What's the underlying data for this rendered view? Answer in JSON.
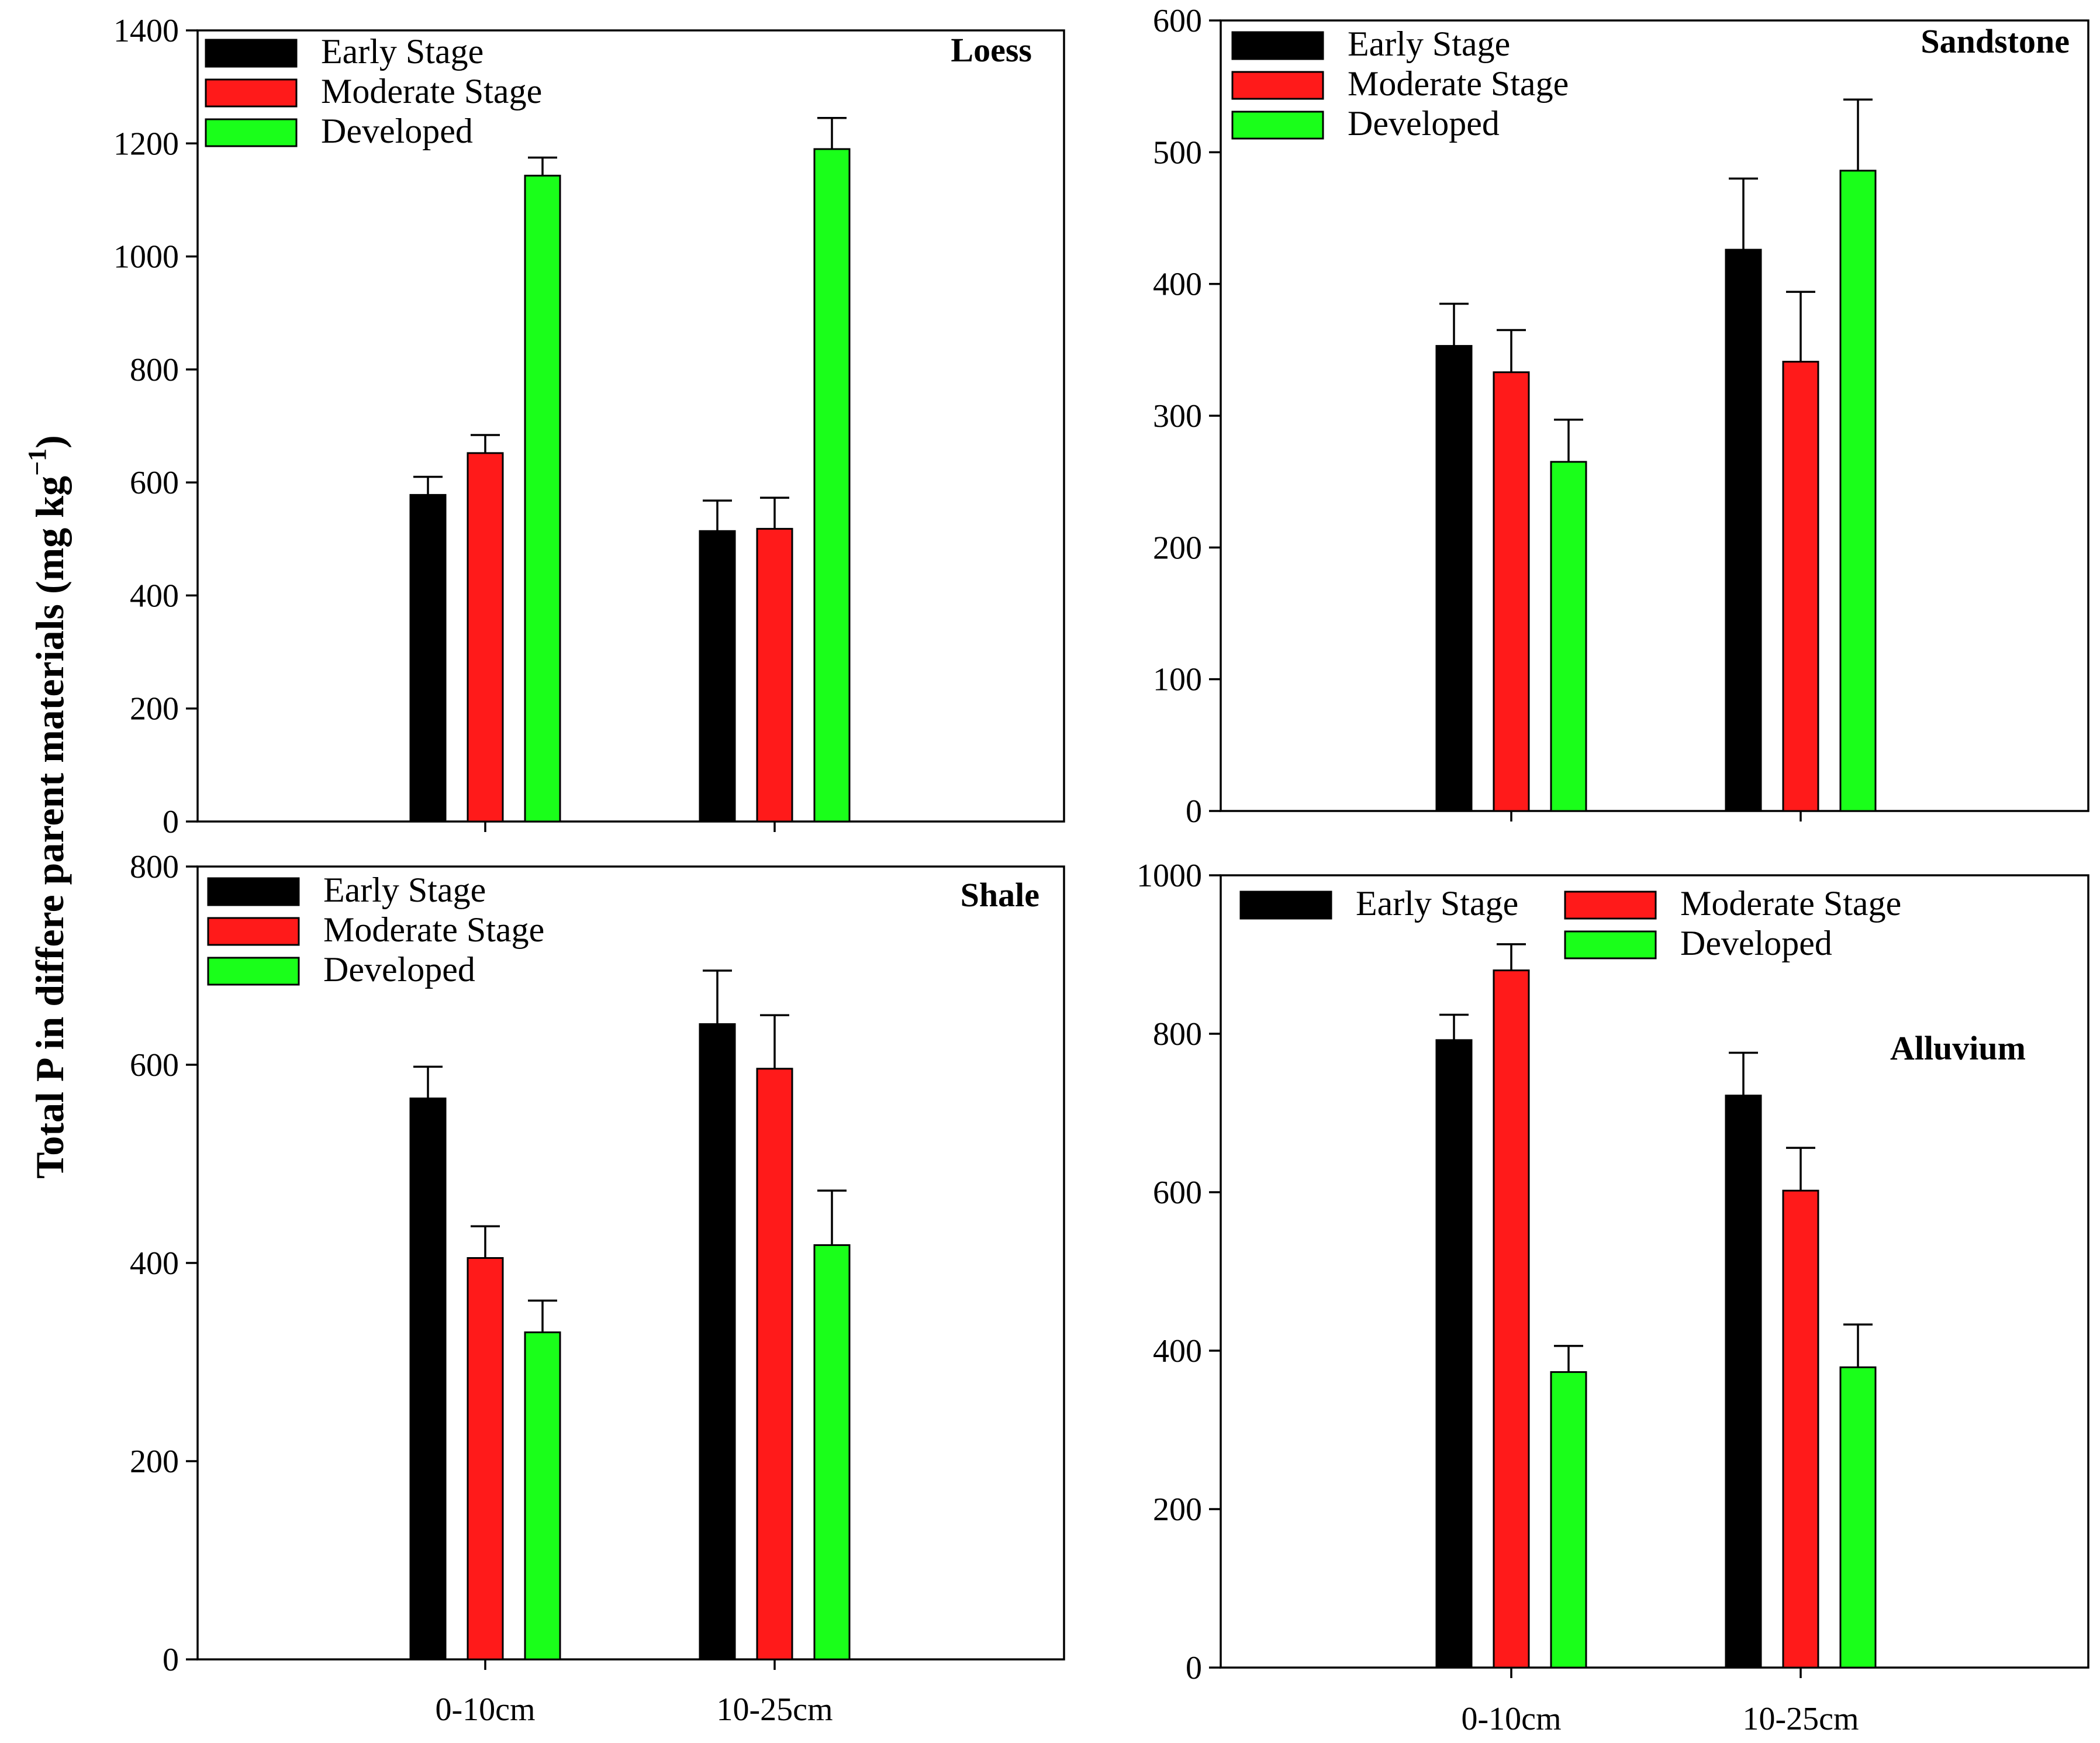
{
  "figure": {
    "ylabel_main": "Total P in differe parent materials  (mg kg",
    "ylabel_sup": "−1",
    "ylabel_close": ")"
  },
  "colors": {
    "early": "#000000",
    "moderate": "#ff1a1a",
    "developed": "#1aff1a"
  },
  "chart_data": [
    {
      "type": "bar",
      "title": "Loess",
      "categories": [
        "0-10cm",
        "10-25cm"
      ],
      "show_xticklabels": false,
      "ylim": [
        0,
        1400
      ],
      "yticks": [
        0,
        200,
        400,
        600,
        800,
        1000,
        1200,
        1400
      ],
      "series": [
        {
          "name": "Early Stage",
          "color": "#000000",
          "values": [
            578,
            514
          ],
          "errors": [
            32,
            54
          ]
        },
        {
          "name": "Moderate Stage",
          "color": "#ff1a1a",
          "values": [
            652,
            518
          ],
          "errors": [
            32,
            55
          ]
        },
        {
          "name": "Developed",
          "color": "#1aff1a",
          "values": [
            1143,
            1190
          ],
          "errors": [
            32,
            55
          ]
        }
      ],
      "legend": {
        "position": "top-left",
        "columns": 1
      }
    },
    {
      "type": "bar",
      "title": "Sandstone",
      "categories": [
        "0-10cm",
        "10-25cm"
      ],
      "show_xticklabels": false,
      "ylim": [
        0,
        600
      ],
      "yticks": [
        0,
        100,
        200,
        300,
        400,
        500,
        600
      ],
      "series": [
        {
          "name": "Early Stage",
          "color": "#000000",
          "values": [
            353,
            426
          ],
          "errors": [
            32,
            54
          ]
        },
        {
          "name": "Moderate Stage",
          "color": "#ff1a1a",
          "values": [
            333,
            341
          ],
          "errors": [
            32,
            53
          ]
        },
        {
          "name": "Developed",
          "color": "#1aff1a",
          "values": [
            265,
            486
          ],
          "errors": [
            32,
            54
          ]
        }
      ],
      "legend": {
        "position": "top-left",
        "columns": 1
      }
    },
    {
      "type": "bar",
      "title": "Shale",
      "categories": [
        "0-10cm",
        "10-25cm"
      ],
      "show_xticklabels": true,
      "ylim": [
        0,
        800
      ],
      "yticks": [
        0,
        200,
        400,
        600,
        800
      ],
      "series": [
        {
          "name": "Early Stage",
          "color": "#000000",
          "values": [
            566,
            641
          ],
          "errors": [
            32,
            54
          ]
        },
        {
          "name": "Moderate Stage",
          "color": "#ff1a1a",
          "values": [
            405,
            596
          ],
          "errors": [
            32,
            54
          ]
        },
        {
          "name": "Developed",
          "color": "#1aff1a",
          "values": [
            330,
            418
          ],
          "errors": [
            32,
            55
          ]
        }
      ],
      "legend": {
        "position": "top-left",
        "columns": 1
      }
    },
    {
      "type": "bar",
      "title": "Alluvium",
      "categories": [
        "0-10cm",
        "10-25cm"
      ],
      "show_xticklabels": true,
      "ylim": [
        0,
        1000
      ],
      "yticks": [
        0,
        200,
        400,
        600,
        800,
        1000
      ],
      "series": [
        {
          "name": "Early Stage",
          "color": "#000000",
          "values": [
            792,
            722
          ],
          "errors": [
            32,
            54
          ]
        },
        {
          "name": "Moderate Stage",
          "color": "#ff1a1a",
          "values": [
            880,
            602
          ],
          "errors": [
            33,
            54
          ]
        },
        {
          "name": "Developed",
          "color": "#1aff1a",
          "values": [
            373,
            379
          ],
          "errors": [
            33,
            54
          ]
        }
      ],
      "legend": {
        "position": "top",
        "columns": 2
      }
    }
  ]
}
